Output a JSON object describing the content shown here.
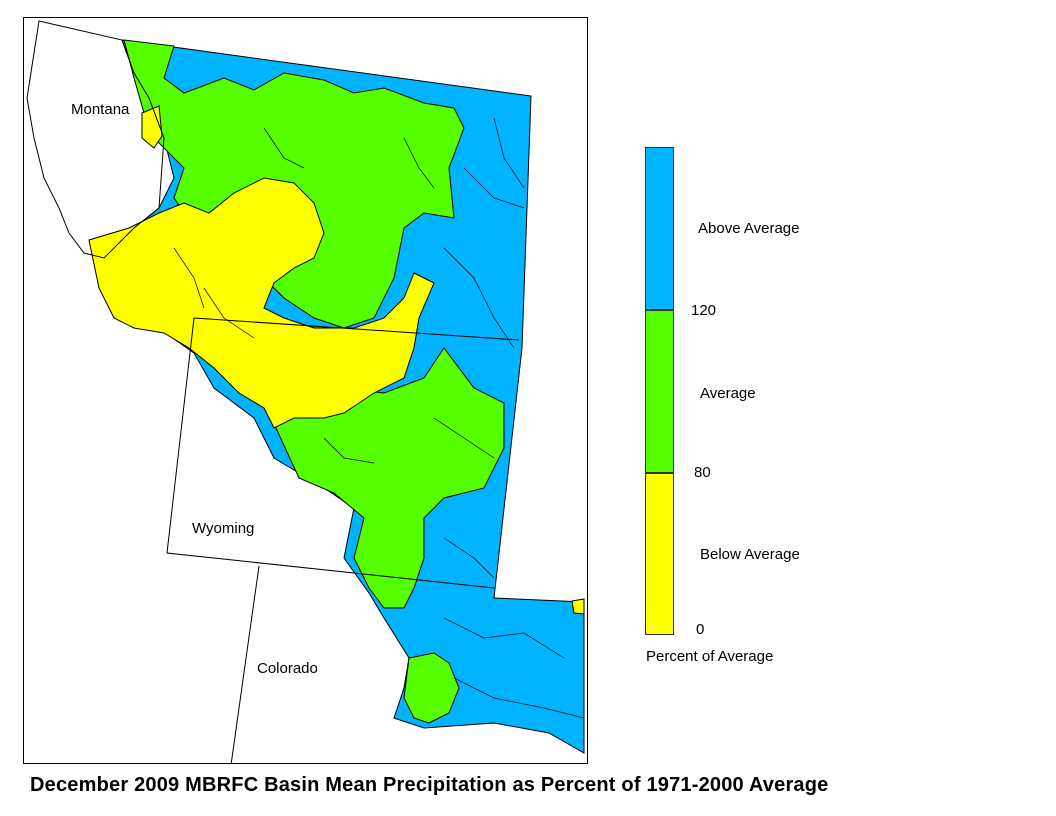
{
  "map": {
    "states": [
      "Montana",
      "Wyoming",
      "Colorado"
    ]
  },
  "legend": {
    "categories": [
      {
        "label": "Above Average",
        "color": "#00b4ff"
      },
      {
        "label": "Average",
        "color": "#55ff00"
      },
      {
        "label": "Below Average",
        "color": "#ffff00"
      }
    ],
    "thresholds": [
      "120",
      "80",
      "0"
    ],
    "caption": "Percent of Average"
  },
  "title": "December 2009 MBRFC Basin Mean Precipitation as Percent of 1971-2000 Average"
}
